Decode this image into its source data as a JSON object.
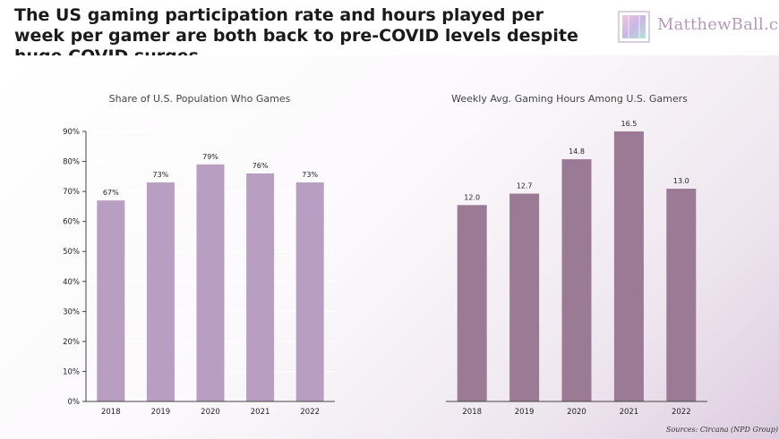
{
  "header": {
    "title": "The US gaming participation rate and hours played per week per gamer are both back to pre-COVID levels despite huge COVID surges",
    "brand": "MatthewBall.co"
  },
  "colors": {
    "bar_left": "#b89fc2",
    "bar_right": "#9b7a95"
  },
  "chart_data": [
    {
      "type": "bar",
      "title": "Share of U.S. Population Who Games",
      "categories": [
        "2018",
        "2019",
        "2020",
        "2021",
        "2022"
      ],
      "values": [
        67,
        73,
        79,
        76,
        73
      ],
      "data_labels": [
        "67%",
        "73%",
        "79%",
        "76%",
        "73%"
      ],
      "ylim": [
        0,
        90
      ],
      "yticks": [
        "0%",
        "10%",
        "20%",
        "30%",
        "40%",
        "50%",
        "60%",
        "70%",
        "80%",
        "90%"
      ],
      "xlabel": "",
      "ylabel": "",
      "grid": true
    },
    {
      "type": "bar",
      "title": "Weekly Avg. Gaming Hours Among U.S. Gamers",
      "categories": [
        "2018",
        "2019",
        "2020",
        "2021",
        "2022"
      ],
      "values": [
        12.0,
        12.7,
        14.8,
        16.5,
        13.0
      ],
      "data_labels": [
        "12.0",
        "12.7",
        "14.8",
        "16.5",
        "13.0"
      ],
      "ylim": [
        0,
        16.5
      ],
      "xlabel": "",
      "ylabel": "",
      "grid": false
    }
  ],
  "footer": {
    "source": "Sources: Circana (NPD Group)"
  }
}
